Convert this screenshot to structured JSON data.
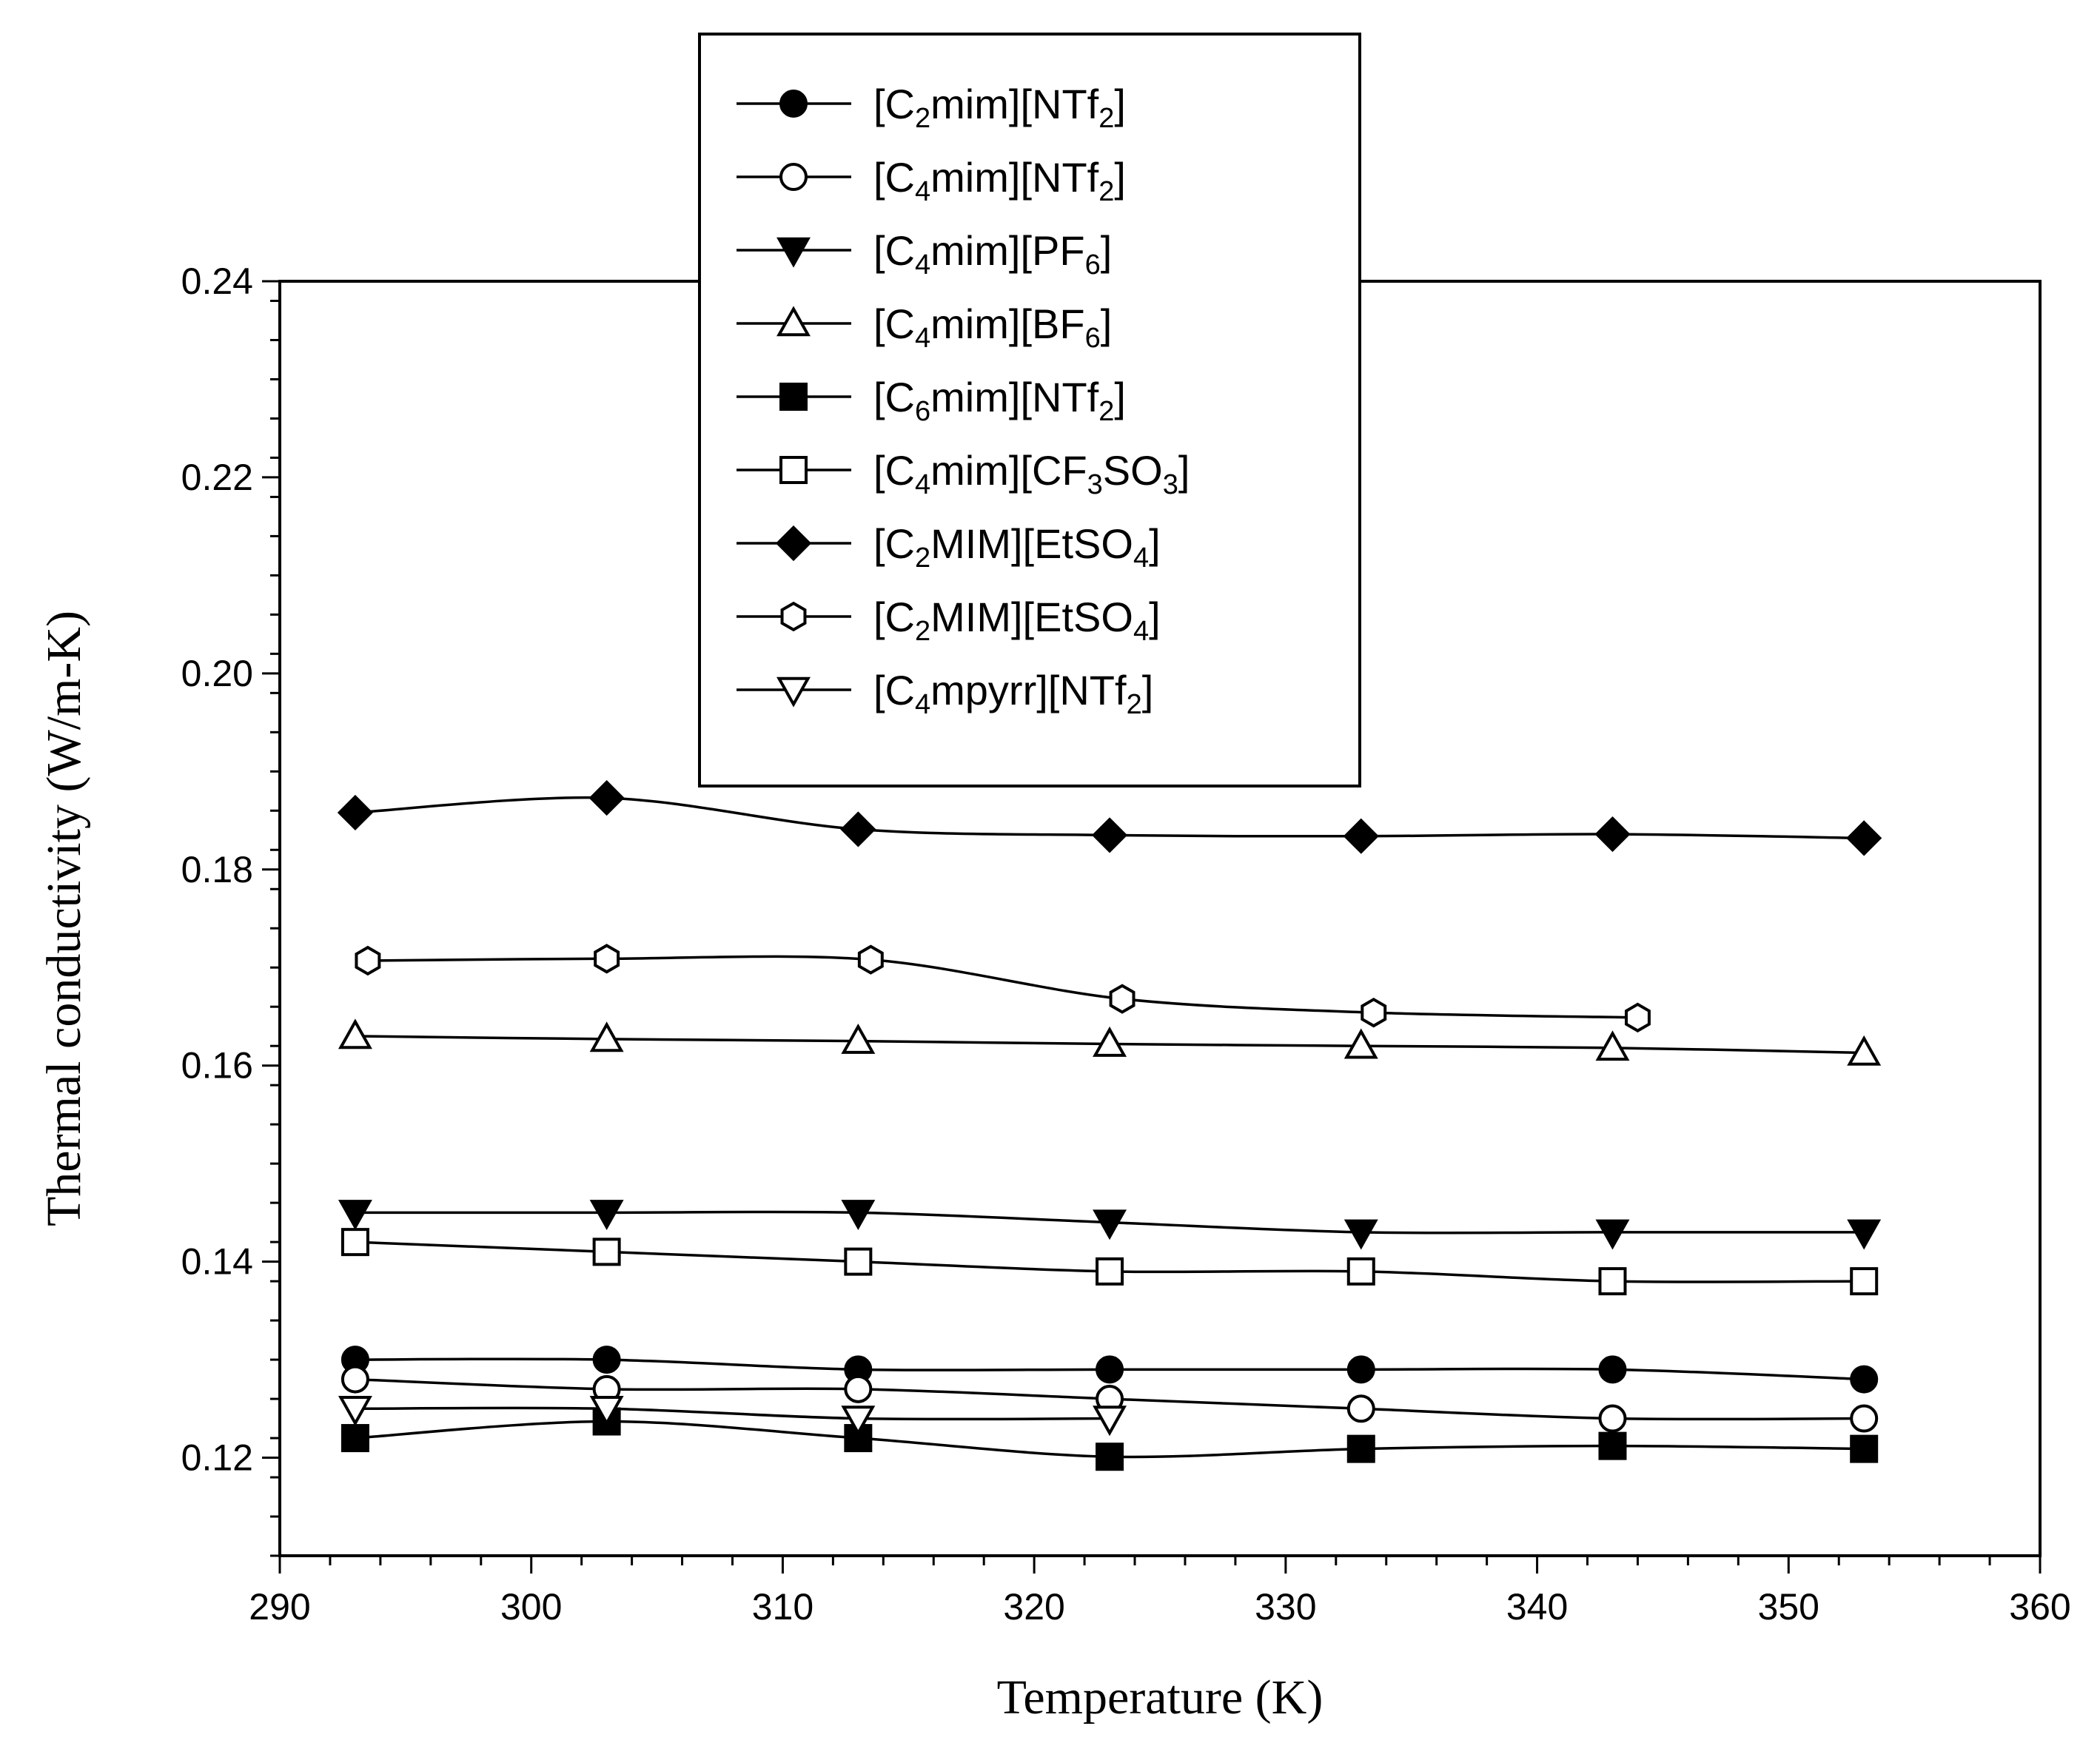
{
  "chart_data": {
    "type": "line",
    "title": "",
    "xlabel": "Temperature (K)",
    "ylabel": "Thermal conductivity (W/m-K)",
    "xlim": [
      290,
      360
    ],
    "ylim": [
      0.11,
      0.24
    ],
    "x_ticks": [
      "290",
      "300",
      "310",
      "320",
      "330",
      "340",
      "350",
      "360"
    ],
    "y_ticks": [
      "0.12",
      "0.14",
      "0.16",
      "0.18",
      "0.20",
      "0.22",
      "0.24"
    ],
    "x_tick_values": [
      290,
      300,
      310,
      320,
      330,
      340,
      350,
      360
    ],
    "y_tick_values": [
      0.12,
      0.14,
      0.16,
      0.18,
      0.2,
      0.22,
      0.24
    ],
    "legend_position": "top-center",
    "grid": false,
    "series": [
      {
        "name": "[C2mim][NTf2]",
        "label_parts": [
          [
            "[C",
            "n"
          ],
          [
            "2",
            "sub"
          ],
          [
            "mim][NTf",
            "n"
          ],
          [
            "2",
            "sub"
          ],
          [
            "]",
            "n"
          ]
        ],
        "marker": "circle",
        "filled": true,
        "x": [
          293,
          303,
          313,
          323,
          333,
          343,
          353
        ],
        "values": [
          0.13,
          0.13,
          0.129,
          0.129,
          0.129,
          0.129,
          0.128
        ]
      },
      {
        "name": "[C4mim][NTf2]",
        "label_parts": [
          [
            "[C",
            "n"
          ],
          [
            "4",
            "sub"
          ],
          [
            "mim][NTf",
            "n"
          ],
          [
            "2",
            "sub"
          ],
          [
            "]",
            "n"
          ]
        ],
        "marker": "circle",
        "filled": false,
        "x": [
          293,
          303,
          313,
          323,
          333,
          343,
          353
        ],
        "values": [
          0.128,
          0.127,
          0.127,
          0.126,
          0.125,
          0.124,
          0.124
        ]
      },
      {
        "name": "[C4mim][PF6]",
        "label_parts": [
          [
            "[C",
            "n"
          ],
          [
            "4",
            "sub"
          ],
          [
            "mim][PF",
            "n"
          ],
          [
            "6",
            "sub"
          ],
          [
            "]",
            "n"
          ]
        ],
        "marker": "triangle-down",
        "filled": true,
        "x": [
          293,
          303,
          313,
          323,
          333,
          343,
          353
        ],
        "values": [
          0.145,
          0.145,
          0.145,
          0.144,
          0.143,
          0.143,
          0.143
        ]
      },
      {
        "name": "[C4mim][BF6]",
        "label_parts": [
          [
            "[C",
            "n"
          ],
          [
            "4",
            "sub"
          ],
          [
            "mim][BF",
            "n"
          ],
          [
            "6",
            "sub"
          ],
          [
            "]",
            "n"
          ]
        ],
        "marker": "triangle-up",
        "filled": false,
        "x": [
          293,
          303,
          313,
          323,
          333,
          343,
          353
        ],
        "values": [
          0.163,
          0.1627,
          0.1625,
          0.1622,
          0.162,
          0.1618,
          0.1613
        ]
      },
      {
        "name": "[C6mim][NTf2]",
        "label_parts": [
          [
            "[C",
            "n"
          ],
          [
            "6",
            "sub"
          ],
          [
            "mim][NTf",
            "n"
          ],
          [
            "2",
            "sub"
          ],
          [
            "]",
            "n"
          ]
        ],
        "marker": "square",
        "filled": true,
        "x": [
          293,
          303,
          313,
          323,
          333,
          343,
          353
        ],
        "values": [
          0.122,
          0.1237,
          0.122,
          0.1201,
          0.1209,
          0.1212,
          0.1209
        ]
      },
      {
        "name": "[C4mim][CF3SO3]",
        "label_parts": [
          [
            "[C",
            "n"
          ],
          [
            "4",
            "sub"
          ],
          [
            "mim][CF",
            "n"
          ],
          [
            "3",
            "sub"
          ],
          [
            "SO",
            "n"
          ],
          [
            "3",
            "sub"
          ],
          [
            "]",
            "n"
          ]
        ],
        "marker": "square",
        "filled": false,
        "x": [
          293,
          303,
          313,
          323,
          333,
          343,
          353
        ],
        "values": [
          0.142,
          0.141,
          0.14,
          0.139,
          0.139,
          0.138,
          0.138
        ]
      },
      {
        "name": "[C2MIM][EtSO4]",
        "label_parts": [
          [
            "[C",
            "n"
          ],
          [
            "2",
            "sub"
          ],
          [
            "MIM][EtSO",
            "n"
          ],
          [
            "4",
            "sub"
          ],
          [
            "]",
            "n"
          ]
        ],
        "marker": "diamond",
        "filled": true,
        "x": [
          293,
          303,
          313,
          323,
          333,
          343,
          353
        ],
        "values": [
          0.1858,
          0.1873,
          0.1841,
          0.1835,
          0.1834,
          0.1836,
          0.1832
        ]
      },
      {
        "name": "[C2MIM][EtSO4]",
        "label_parts": [
          [
            "[C",
            "n"
          ],
          [
            "2",
            "sub"
          ],
          [
            "MIM][EtSO",
            "n"
          ],
          [
            "4",
            "sub"
          ],
          [
            "]",
            "n"
          ]
        ],
        "marker": "hexagon",
        "filled": false,
        "x": [
          293.5,
          303,
          313.5,
          323.5,
          333.5,
          344
        ],
        "values": [
          0.1707,
          0.1709,
          0.1708,
          0.1668,
          0.1654,
          0.1649
        ]
      },
      {
        "name": "[C4mpyrr][NTf2]",
        "label_parts": [
          [
            "[C",
            "n"
          ],
          [
            "4",
            "sub"
          ],
          [
            "mpyrr][NTf",
            "n"
          ],
          [
            "2",
            "sub"
          ],
          [
            "]",
            "n"
          ]
        ],
        "marker": "triangle-down",
        "filled": false,
        "x": [
          293,
          303,
          313,
          323
        ],
        "values": [
          0.125,
          0.125,
          0.124,
          0.124
        ]
      }
    ]
  }
}
